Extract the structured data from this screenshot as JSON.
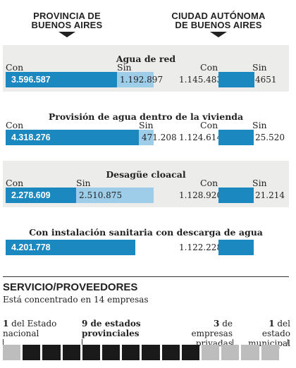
{
  "headers": {
    "left": [
      "PROVINCIA DE",
      "BUENOS AIRES"
    ],
    "right": [
      "CIUDAD AUTÓNOMA",
      "DE BUENOS AIRES"
    ]
  },
  "labels": {
    "con": "Con",
    "sin": "Sin"
  },
  "colors": {
    "con": "#1b88bf",
    "sin": "#9dcde8",
    "panel": "#ececea",
    "dark_block": "#1a1a1a",
    "gray_block": "#bdbdbd"
  },
  "chart_data": {
    "type": "bar",
    "panels": [
      {
        "title": "Agua de red",
        "provincia": {
          "con": 3596587,
          "sin": 1192897,
          "con_label": "3.596.587",
          "sin_label": "1.192.897"
        },
        "ciudad": {
          "con": 1145483,
          "sin": 4651,
          "con_label": "1.145.483",
          "sin_label": "4651"
        }
      },
      {
        "title": "Provisión de agua dentro de la vivienda",
        "provincia": {
          "con": 4318276,
          "sin": 471208,
          "con_label": "4.318.276",
          "sin_label": "471.208"
        },
        "ciudad": {
          "con": 1124614,
          "sin": 25520,
          "con_label": "1.124.614",
          "sin_label": "25.520"
        }
      },
      {
        "title": "Desagüe cloacal",
        "provincia": {
          "con": 2278609,
          "sin": 2510875,
          "con_label": "2.278.609",
          "sin_label": "2.510.875"
        },
        "ciudad": {
          "con": 1128920,
          "sin": 21214,
          "con_label": "1.128.920",
          "sin_label": "21.214"
        }
      },
      {
        "title": "Con instalación sanitaria con descarga de agua",
        "provincia": {
          "con": 4201778,
          "con_label": "4.201.778"
        },
        "ciudad": {
          "con": 1122228,
          "con_label": "1.122.228"
        }
      }
    ]
  },
  "service": {
    "title": "SERVICIO/PROVEEDORES",
    "subtitle": "Está concentrado en 14 empresas",
    "groups": [
      {
        "count": "1",
        "text_a": " del Estado",
        "text_b": "nacional"
      },
      {
        "count": "9",
        "text_a": " de estados",
        "text_b": "provinciales"
      },
      {
        "count": "3",
        "text_a": " de empresas",
        "text_b": "privadas"
      },
      {
        "count": "1",
        "text_a": " del estado",
        "text_b": "municipal"
      }
    ],
    "blocks": [
      "gray",
      "dark",
      "dark",
      "dark",
      "dark",
      "dark",
      "dark",
      "dark",
      "dark",
      "dark",
      "gray",
      "gray",
      "gray",
      "gray"
    ]
  }
}
